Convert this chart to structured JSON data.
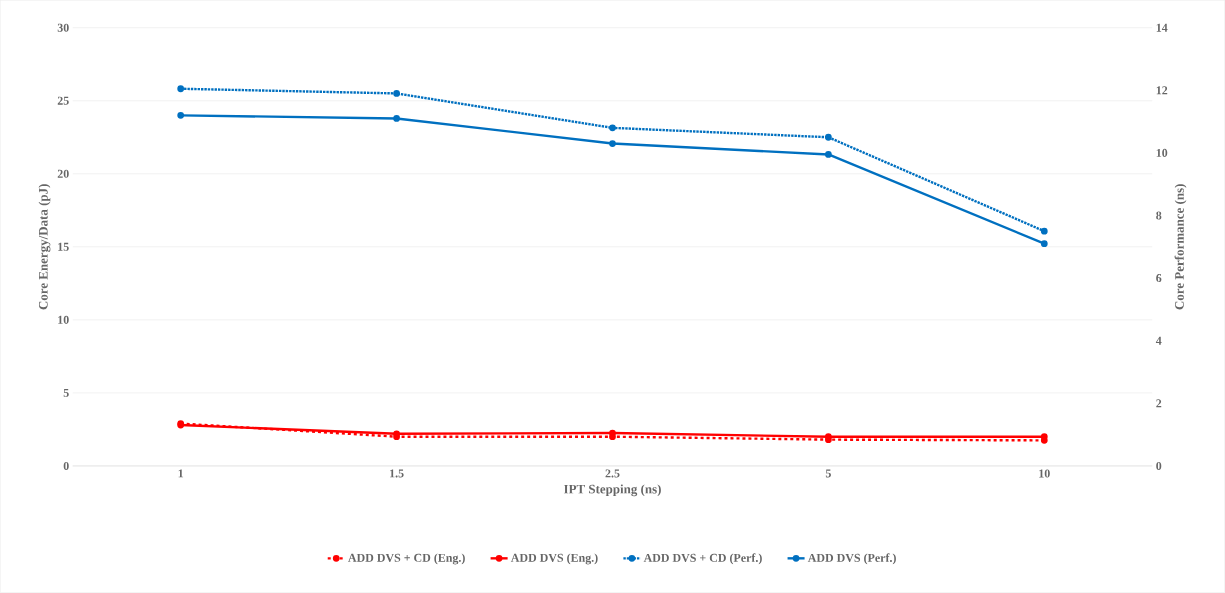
{
  "chart_data": {
    "type": "line",
    "xlabel": "IPT Stepping (ns)",
    "ylabel": "Core Energy/Data (pJ)",
    "y2label": "Core Performance (ns)",
    "categories": [
      "1",
      "1.5",
      "2.5",
      "5",
      "10"
    ],
    "series": [
      {
        "name": "ADD DVS + CD (Eng.)",
        "color": "#ff0000",
        "line_style": "dashed",
        "values": [
          2.9,
          2.0,
          2.0,
          1.8,
          1.75
        ]
      },
      {
        "name": "ADD DVS (Eng.)",
        "color": "#ff0000",
        "line_style": "solid",
        "values": [
          2.8,
          2.2,
          2.25,
          2.0,
          2.0
        ]
      },
      {
        "name": "ADD DVS + CD (Perf.)",
        "color": "#0070c0",
        "line_style": "dotted",
        "axis": "y2",
        "values": [
          12.05,
          11.9,
          10.8,
          10.5,
          7.5
        ]
      },
      {
        "name": "ADD DVS (Perf.)",
        "color": "#0070c0",
        "line_style": "solid",
        "axis": "y2",
        "values": [
          11.2,
          11.1,
          10.3,
          9.95,
          7.1
        ]
      }
    ],
    "ylim": [
      0,
      30
    ],
    "yticks": [
      0,
      5,
      10,
      15,
      20,
      25,
      30
    ],
    "y2lim": [
      0,
      14
    ],
    "y2ticks": [
      0,
      2,
      4,
      6,
      8,
      10,
      12,
      14
    ],
    "grid": "y",
    "legend": "bottom",
    "marker": "circle"
  }
}
